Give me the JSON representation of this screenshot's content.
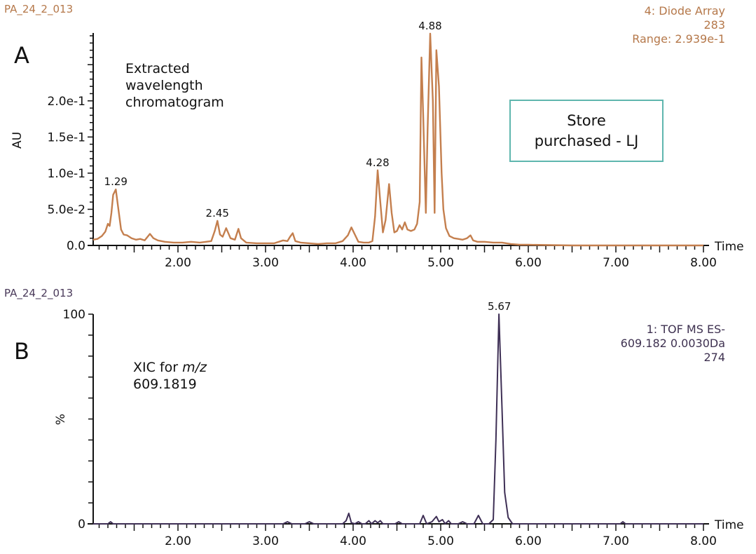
{
  "chart_data": [
    {
      "id": "A",
      "type": "line",
      "panel_label": "A",
      "sample_name": "PA_24_2_013",
      "title": "Extracted wavelength chromatogram",
      "annotation_lines": [
        "Extracted",
        "wavelength",
        "chromatogram"
      ],
      "info_lines": [
        "4: Diode Array",
        "283",
        "Range: 2.939e-1"
      ],
      "boxed_note_lines": [
        "Store",
        "purchased - LJ"
      ],
      "xlabel": "Time",
      "ylabel": "AU",
      "xlim": [
        1.03,
        8.0
      ],
      "ylim": [
        0,
        0.2939
      ],
      "x_ticks": [
        "2.00",
        "3.00",
        "4.00",
        "5.00",
        "6.00",
        "7.00",
        "8.00"
      ],
      "y_ticks": [
        "0.0",
        "5.0e-2",
        "1.0e-1",
        "1.5e-1",
        "2.0e-1"
      ],
      "y_tick_values": [
        0,
        0.05,
        0.1,
        0.15,
        0.2
      ],
      "color": "#c47f4e",
      "peak_labels": [
        {
          "x": 1.29,
          "y": 0.0775,
          "label": "1.29"
        },
        {
          "x": 2.45,
          "y": 0.034,
          "label": "2.45"
        },
        {
          "x": 4.28,
          "y": 0.104,
          "label": "4.28"
        },
        {
          "x": 4.88,
          "y": 0.293,
          "label": "4.88"
        }
      ],
      "x": [
        1.03,
        1.08,
        1.13,
        1.17,
        1.2,
        1.22,
        1.24,
        1.26,
        1.29,
        1.32,
        1.35,
        1.38,
        1.42,
        1.47,
        1.52,
        1.57,
        1.62,
        1.68,
        1.72,
        1.77,
        1.85,
        1.95,
        2.05,
        2.15,
        2.25,
        2.32,
        2.38,
        2.42,
        2.45,
        2.48,
        2.51,
        2.55,
        2.6,
        2.65,
        2.69,
        2.72,
        2.78,
        2.9,
        3.0,
        3.1,
        3.2,
        3.25,
        3.28,
        3.31,
        3.34,
        3.4,
        3.5,
        3.6,
        3.7,
        3.8,
        3.88,
        3.94,
        3.98,
        4.02,
        4.06,
        4.12,
        4.18,
        4.22,
        4.25,
        4.28,
        4.31,
        4.34,
        4.37,
        4.41,
        4.44,
        4.47,
        4.5,
        4.53,
        4.56,
        4.59,
        4.62,
        4.66,
        4.7,
        4.73,
        4.76,
        4.78,
        4.8,
        4.83,
        4.85,
        4.88,
        4.91,
        4.93,
        4.95,
        4.98,
        5.01,
        5.03,
        5.06,
        5.1,
        5.15,
        5.2,
        5.25,
        5.3,
        5.34,
        5.37,
        5.42,
        5.5,
        5.6,
        5.7,
        5.8,
        5.9,
        6.0,
        6.5,
        7.0,
        7.5,
        8.0
      ],
      "y": [
        0.008,
        0.009,
        0.013,
        0.019,
        0.03,
        0.027,
        0.045,
        0.07,
        0.0775,
        0.05,
        0.022,
        0.015,
        0.014,
        0.01,
        0.008,
        0.009,
        0.007,
        0.016,
        0.01,
        0.007,
        0.005,
        0.004,
        0.004,
        0.005,
        0.004,
        0.005,
        0.006,
        0.02,
        0.034,
        0.015,
        0.012,
        0.024,
        0.01,
        0.008,
        0.023,
        0.01,
        0.004,
        0.003,
        0.003,
        0.003,
        0.007,
        0.006,
        0.012,
        0.017,
        0.006,
        0.004,
        0.003,
        0.002,
        0.003,
        0.003,
        0.006,
        0.014,
        0.025,
        0.015,
        0.005,
        0.004,
        0.004,
        0.006,
        0.04,
        0.104,
        0.06,
        0.018,
        0.035,
        0.085,
        0.045,
        0.018,
        0.02,
        0.028,
        0.022,
        0.032,
        0.022,
        0.02,
        0.022,
        0.03,
        0.06,
        0.26,
        0.18,
        0.045,
        0.16,
        0.293,
        0.2,
        0.045,
        0.27,
        0.22,
        0.1,
        0.05,
        0.024,
        0.013,
        0.01,
        0.009,
        0.008,
        0.01,
        0.014,
        0.007,
        0.005,
        0.005,
        0.004,
        0.004,
        0.002,
        0.001,
        0.001,
        0.0,
        0.0,
        0.0,
        0.0
      ]
    },
    {
      "id": "B",
      "type": "line",
      "panel_label": "B",
      "sample_name": "PA_24_2_013",
      "title": "XIC for m/z 609.1819",
      "annotation_prefix": "XIC for ",
      "annotation_italic": "m/z",
      "annotation_value": "609.1819",
      "info_lines": [
        "1: TOF MS ES-",
        "609.182 0.0030Da",
        "274"
      ],
      "xlabel": "Time",
      "ylabel": "%",
      "xlim": [
        1.03,
        8.0
      ],
      "ylim": [
        0,
        100
      ],
      "x_ticks": [
        "2.00",
        "3.00",
        "4.00",
        "5.00",
        "6.00",
        "7.00",
        "8.00"
      ],
      "y_ticks": [
        "0",
        "100"
      ],
      "y_tick_values": [
        0,
        100
      ],
      "color": "#3e2f55",
      "peak_labels": [
        {
          "x": 5.67,
          "y": 100,
          "label": "5.67"
        }
      ],
      "x": [
        1.03,
        1.2,
        1.23,
        1.26,
        3.2,
        3.25,
        3.3,
        3.45,
        3.5,
        3.55,
        3.88,
        3.92,
        3.95,
        3.98,
        4.02,
        4.06,
        4.1,
        4.14,
        4.18,
        4.21,
        4.25,
        4.28,
        4.31,
        4.34,
        4.48,
        4.52,
        4.56,
        4.76,
        4.8,
        4.84,
        4.9,
        4.95,
        4.98,
        5.02,
        5.05,
        5.09,
        5.12,
        5.2,
        5.25,
        5.3,
        5.38,
        5.43,
        5.48,
        5.55,
        5.6,
        5.63,
        5.665,
        5.7,
        5.73,
        5.77,
        5.82,
        6.0,
        7.05,
        7.08,
        7.11,
        8.0
      ],
      "y": [
        0,
        0,
        1,
        0,
        0,
        1,
        0,
        0,
        1,
        0,
        0,
        1.5,
        5,
        0.5,
        0,
        1,
        0,
        0,
        1.5,
        0,
        1.5,
        0.5,
        1.5,
        0,
        0,
        1,
        0,
        0,
        4,
        0,
        1,
        3.5,
        1,
        2,
        0,
        1.5,
        0,
        0,
        1,
        0,
        0,
        4,
        0,
        0,
        2,
        40,
        100,
        55,
        15,
        3,
        0,
        0,
        0,
        1,
        0,
        0
      ]
    }
  ]
}
